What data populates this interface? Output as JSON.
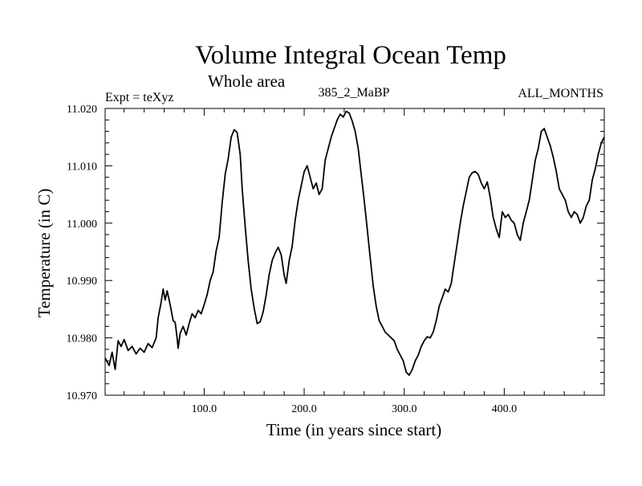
{
  "chart_data": {
    "type": "line",
    "title": "Volume Integral Ocean Temp",
    "subtitle": "Whole area",
    "annotations": {
      "experiment": "Expt = teXyz",
      "run": "385_2_MaBP",
      "period": "ALL_MONTHS"
    },
    "xlabel": "Time (in years since start)",
    "ylabel": "Temperature (in C)",
    "xlim": [
      1,
      500
    ],
    "ylim": [
      10.97,
      11.02
    ],
    "grid": false,
    "x_ticks": [
      100,
      200,
      300,
      400
    ],
    "x_tick_labels": [
      "100.0",
      "200.0",
      "300.0",
      "400.0"
    ],
    "y_ticks": [
      10.97,
      10.98,
      10.99,
      11.0,
      11.01,
      11.02
    ],
    "y_tick_labels": [
      "10.970",
      "10.980",
      "10.990",
      "11.000",
      "11.010",
      "11.020"
    ],
    "series": [
      {
        "color": "#000000",
        "points": [
          [
            1,
            10.9765
          ],
          [
            5,
            10.9752
          ],
          [
            8,
            10.9775
          ],
          [
            11,
            10.9745
          ],
          [
            14,
            10.9795
          ],
          [
            17,
            10.9785
          ],
          [
            20,
            10.9797
          ],
          [
            24,
            10.9778
          ],
          [
            28,
            10.9785
          ],
          [
            32,
            10.9772
          ],
          [
            36,
            10.9782
          ],
          [
            40,
            10.9775
          ],
          [
            44,
            10.979
          ],
          [
            48,
            10.9783
          ],
          [
            52,
            10.98
          ],
          [
            54,
            10.9835
          ],
          [
            57,
            10.9862
          ],
          [
            59,
            10.9885
          ],
          [
            61,
            10.9866
          ],
          [
            63,
            10.9882
          ],
          [
            66,
            10.9858
          ],
          [
            69,
            10.983
          ],
          [
            71,
            10.9827
          ],
          [
            73,
            10.98
          ],
          [
            74,
            10.9782
          ],
          [
            76,
            10.9808
          ],
          [
            79,
            10.982
          ],
          [
            82,
            10.9805
          ],
          [
            85,
            10.9825
          ],
          [
            88,
            10.9842
          ],
          [
            91,
            10.9835
          ],
          [
            94,
            10.9848
          ],
          [
            97,
            10.9842
          ],
          [
            100,
            10.9858
          ],
          [
            103,
            10.9875
          ],
          [
            106,
            10.99
          ],
          [
            109,
            10.9915
          ],
          [
            112,
            10.9952
          ],
          [
            115,
            10.9975
          ],
          [
            118,
            11.0035
          ],
          [
            121,
            11.0085
          ],
          [
            124,
            11.0112
          ],
          [
            127,
            11.015
          ],
          [
            130,
            11.0163
          ],
          [
            133,
            11.0158
          ],
          [
            136,
            11.012
          ],
          [
            138,
            11.006
          ],
          [
            141,
            10.9995
          ],
          [
            144,
            10.9935
          ],
          [
            147,
            10.9885
          ],
          [
            150,
            10.9852
          ],
          [
            153,
            10.9825
          ],
          [
            156,
            10.9828
          ],
          [
            159,
            10.9845
          ],
          [
            162,
            10.9875
          ],
          [
            165,
            10.991
          ],
          [
            168,
            10.9935
          ],
          [
            171,
            10.9948
          ],
          [
            174,
            10.9958
          ],
          [
            177,
            10.9945
          ],
          [
            180,
            10.991
          ],
          [
            182,
            10.9895
          ],
          [
            185,
            10.9935
          ],
          [
            188,
            10.996
          ],
          [
            191,
            11.0005
          ],
          [
            194,
            11.004
          ],
          [
            197,
            11.0065
          ],
          [
            200,
            11.009
          ],
          [
            203,
            11.01
          ],
          [
            206,
            11.008
          ],
          [
            209,
            11.006
          ],
          [
            212,
            11.007
          ],
          [
            215,
            11.005
          ],
          [
            218,
            11.006
          ],
          [
            221,
            11.011
          ],
          [
            224,
            11.013
          ],
          [
            227,
            11.015
          ],
          [
            230,
            11.0165
          ],
          [
            233,
            11.018
          ],
          [
            236,
            11.019
          ],
          [
            239,
            11.0185
          ],
          [
            242,
            11.0195
          ],
          [
            245,
            11.0192
          ],
          [
            248,
            11.0178
          ],
          [
            251,
            11.016
          ],
          [
            254,
            11.013
          ],
          [
            257,
            11.0085
          ],
          [
            260,
            11.004
          ],
          [
            263,
            10.999
          ],
          [
            266,
            10.994
          ],
          [
            269,
            10.989
          ],
          [
            272,
            10.9855
          ],
          [
            275,
            10.983
          ],
          [
            278,
            10.982
          ],
          [
            281,
            10.981
          ],
          [
            284,
            10.9805
          ],
          [
            287,
            10.98
          ],
          [
            290,
            10.9795
          ],
          [
            293,
            10.978
          ],
          [
            296,
            10.977
          ],
          [
            299,
            10.976
          ],
          [
            302,
            10.974
          ],
          [
            305,
            10.9735
          ],
          [
            308,
            10.9745
          ],
          [
            311,
            10.976
          ],
          [
            314,
            10.977
          ],
          [
            317,
            10.9785
          ],
          [
            320,
            10.9795
          ],
          [
            323,
            10.9802
          ],
          [
            326,
            10.98
          ],
          [
            329,
            10.981
          ],
          [
            332,
            10.983
          ],
          [
            335,
            10.9855
          ],
          [
            338,
            10.987
          ],
          [
            341,
            10.9885
          ],
          [
            344,
            10.988
          ],
          [
            347,
            10.9895
          ],
          [
            350,
            10.993
          ],
          [
            353,
            10.9965
          ],
          [
            356,
            11.0
          ],
          [
            359,
            11.003
          ],
          [
            362,
            11.0055
          ],
          [
            365,
            11.008
          ],
          [
            368,
            11.0088
          ],
          [
            371,
            11.009
          ],
          [
            374,
            11.0085
          ],
          [
            377,
            11.007
          ],
          [
            380,
            11.006
          ],
          [
            383,
            11.0072
          ],
          [
            386,
            11.0045
          ],
          [
            389,
            11.001
          ],
          [
            392,
            10.999
          ],
          [
            395,
            10.9975
          ],
          [
            398,
            11.002
          ],
          [
            401,
            11.001
          ],
          [
            404,
            11.0015
          ],
          [
            407,
            11.0005
          ],
          [
            410,
            11.0
          ],
          [
            413,
            10.998
          ],
          [
            416,
            10.997
          ],
          [
            419,
            11.0
          ],
          [
            422,
            11.002
          ],
          [
            425,
            11.004
          ],
          [
            428,
            11.0075
          ],
          [
            431,
            11.011
          ],
          [
            434,
            11.013
          ],
          [
            437,
            11.016
          ],
          [
            440,
            11.0165
          ],
          [
            443,
            11.015
          ],
          [
            446,
            11.0135
          ],
          [
            449,
            11.0115
          ],
          [
            452,
            11.009
          ],
          [
            455,
            11.006
          ],
          [
            458,
            11.005
          ],
          [
            461,
            11.004
          ],
          [
            464,
            11.002
          ],
          [
            467,
            11.001
          ],
          [
            470,
            11.002
          ],
          [
            473,
            11.0015
          ],
          [
            476,
            11.0
          ],
          [
            479,
            11.001
          ],
          [
            482,
            11.003
          ],
          [
            485,
            11.004
          ],
          [
            488,
            11.0075
          ],
          [
            491,
            11.0095
          ],
          [
            494,
            11.012
          ],
          [
            497,
            11.014
          ],
          [
            500,
            11.015
          ]
        ]
      }
    ]
  }
}
